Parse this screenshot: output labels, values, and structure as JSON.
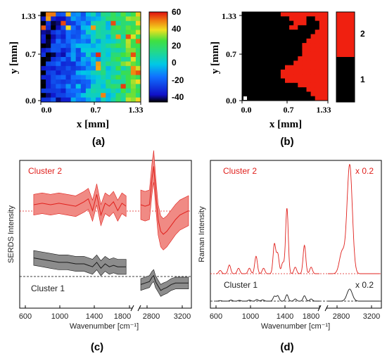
{
  "colors": {
    "cluster2": "#e0201c",
    "cluster2_band": "#f08a84",
    "cluster1": "#1a1a1a",
    "cluster1_band": "#8c8c8c",
    "map_black": "#000000",
    "map_red": "#f02010"
  },
  "chart_data": [
    {
      "id": "a",
      "type": "heatmap",
      "panel_label": "(a)",
      "xlabel": "x [mm]",
      "ylabel": "y [mm]",
      "x_ticks": [
        "0.0",
        "0.7",
        "1.33"
      ],
      "y_ticks": [
        "1.33",
        "0.7",
        "0.0"
      ],
      "xlim": [
        0,
        1.33
      ],
      "ylim": [
        0,
        1.33
      ],
      "grid_size": [
        20,
        20
      ],
      "colorbar_ticks": [
        "60",
        "40",
        "20",
        "0",
        "-20",
        "-40"
      ],
      "colorbar_range": [
        -45,
        60
      ],
      "colormap": "rainbow",
      "values_note": "values increase from about -40 on the left (x=0) to about 30 on the right (x=1.33)"
    },
    {
      "id": "b",
      "type": "heatmap",
      "panel_label": "(b)",
      "xlabel": "x [mm]",
      "ylabel": "y [mm]",
      "x_ticks": [
        "0.0",
        "0.7",
        "1.33"
      ],
      "y_ticks": [
        "1.33",
        "0.7",
        "0.0"
      ],
      "xlim": [
        0,
        1.33
      ],
      "ylim": [
        0,
        1.33
      ],
      "grid_size": [
        20,
        20
      ],
      "categories": [
        "1",
        "2"
      ],
      "colorbar_ticks": [
        "2",
        "1"
      ],
      "cluster_map_rows_top_to_bottom": [
        "11111111122222222222",
        "11111111111222211222",
        "11111111111122211122",
        "11111111111221111122",
        "11111111111111111222",
        "11111111111111112222",
        "11111111111111122222",
        "11111111111111222222",
        "11111111111111222222",
        "11111111111111222222",
        "11111111111112222222",
        "11111111111122222222",
        "11111111112222222222",
        "11111111122222222222",
        "11111111122222222222",
        "11111111112222222222",
        "11111111111112222222",
        "11111111111111122222",
        "11111111111111112222",
        "11111111111111111222"
      ]
    },
    {
      "id": "c",
      "type": "line",
      "panel_label": "(c)",
      "xlabel": "Wavenumber [cm⁻¹]",
      "ylabel": "SERDS Intensity",
      "x_ticks": [
        "600",
        "1000",
        "1400",
        "1800",
        "2800",
        "3200"
      ],
      "x_segments": [
        [
          600,
          1840
        ],
        [
          2700,
          3250
        ]
      ],
      "series": [
        {
          "name": "Cluster 2",
          "x": [
            700,
            800,
            900,
            1000,
            1100,
            1200,
            1300,
            1350,
            1400,
            1450,
            1500,
            1550,
            1600,
            1650,
            1700,
            1750,
            1800
          ],
          "values": [
            0.7,
            0.71,
            0.7,
            0.71,
            0.7,
            0.69,
            0.72,
            0.74,
            0.66,
            0.77,
            0.63,
            0.71,
            0.69,
            0.72,
            0.66,
            0.71,
            0.69
          ],
          "band": 0.07,
          "x2": [
            2700,
            2750,
            2800,
            2830,
            2850,
            2870,
            2900,
            2930,
            2960,
            3000,
            3050,
            3100,
            3150,
            3250
          ],
          "values2": [
            0.7,
            0.69,
            0.7,
            0.88,
            0.96,
            0.8,
            0.6,
            0.52,
            0.5,
            0.52,
            0.56,
            0.6,
            0.63,
            0.66
          ],
          "band2": 0.1
        },
        {
          "name": "Cluster 1",
          "x": [
            700,
            800,
            900,
            1000,
            1100,
            1200,
            1300,
            1350,
            1400,
            1450,
            1500,
            1550,
            1600,
            1650,
            1700,
            1750,
            1800
          ],
          "values": [
            0.34,
            0.33,
            0.32,
            0.31,
            0.31,
            0.3,
            0.3,
            0.29,
            0.28,
            0.31,
            0.27,
            0.3,
            0.28,
            0.29,
            0.28,
            0.28,
            0.28
          ],
          "band": 0.05,
          "x2": [
            2700,
            2750,
            2800,
            2830,
            2850,
            2870,
            2900,
            2930,
            2960,
            3000,
            3050,
            3100,
            3150,
            3250
          ],
          "values2": [
            0.16,
            0.17,
            0.18,
            0.21,
            0.22,
            0.18,
            0.15,
            0.12,
            0.13,
            0.14,
            0.16,
            0.17,
            0.17,
            0.17
          ],
          "band2": 0.04
        }
      ]
    },
    {
      "id": "d",
      "type": "line",
      "panel_label": "(d)",
      "xlabel": "Wavenumber [cm⁻¹]",
      "ylabel": "Raman Intensity",
      "x_ticks": [
        "600",
        "1000",
        "1400",
        "1800",
        "2800",
        "3200"
      ],
      "x_segments": [
        [
          600,
          1840
        ],
        [
          2700,
          3250
        ]
      ],
      "series": [
        {
          "name": "Cluster 2",
          "scale_label": "x 0.2",
          "peaks": [
            [
              650,
              0.03
            ],
            [
              760,
              0.08
            ],
            [
              870,
              0.05
            ],
            [
              1000,
              0.05
            ],
            [
              1080,
              0.16
            ],
            [
              1170,
              0.05
            ],
            [
              1300,
              0.27
            ],
            [
              1340,
              0.18
            ],
            [
              1400,
              0.1
            ],
            [
              1450,
              0.6
            ],
            [
              1550,
              0.06
            ],
            [
              1660,
              0.26
            ],
            [
              1740,
              0.06
            ],
            [
              2850,
              0.2
            ],
            [
              2930,
              1.0
            ]
          ]
        },
        {
          "name": "Cluster 1",
          "scale_label": "x 0.2",
          "peaks": [
            [
              650,
              0.02
            ],
            [
              780,
              0.04
            ],
            [
              880,
              0.03
            ],
            [
              1000,
              0.04
            ],
            [
              1090,
              0.06
            ],
            [
              1160,
              0.05
            ],
            [
              1300,
              0.18
            ],
            [
              1340,
              0.2
            ],
            [
              1450,
              0.24
            ],
            [
              1550,
              0.08
            ],
            [
              1660,
              0.2
            ],
            [
              1740,
              0.08
            ],
            [
              2930,
              0.45
            ]
          ]
        }
      ]
    }
  ]
}
